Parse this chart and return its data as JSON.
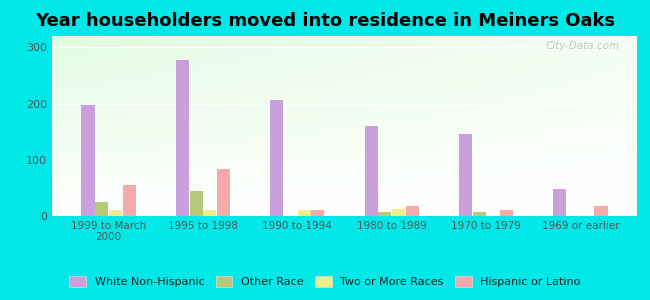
{
  "title": "Year householders moved into residence in Meiners Oaks",
  "categories": [
    "1999 to March\n2000",
    "1995 to 1998",
    "1990 to 1994",
    "1980 to 1989",
    "1970 to 1979",
    "1969 or earlier"
  ],
  "series": {
    "White Non-Hispanic": [
      198,
      278,
      206,
      160,
      145,
      48
    ],
    "Other Race": [
      25,
      44,
      0,
      8,
      8,
      0
    ],
    "Two or More Races": [
      10,
      10,
      10,
      12,
      0,
      0
    ],
    "Hispanic or Latino": [
      55,
      83,
      10,
      18,
      10,
      18
    ]
  },
  "colors": {
    "White Non-Hispanic": "#c9a0dc",
    "Other Race": "#b8c87a",
    "Two or More Races": "#eeee88",
    "Hispanic or Latino": "#f4aaaa"
  },
  "background_outer": "#00e8e8",
  "ylim": [
    0,
    320
  ],
  "yticks": [
    0,
    100,
    200,
    300
  ],
  "watermark": "City-Data.com",
  "bar_width": 0.14,
  "legend_fontsize": 8,
  "title_fontsize": 13
}
